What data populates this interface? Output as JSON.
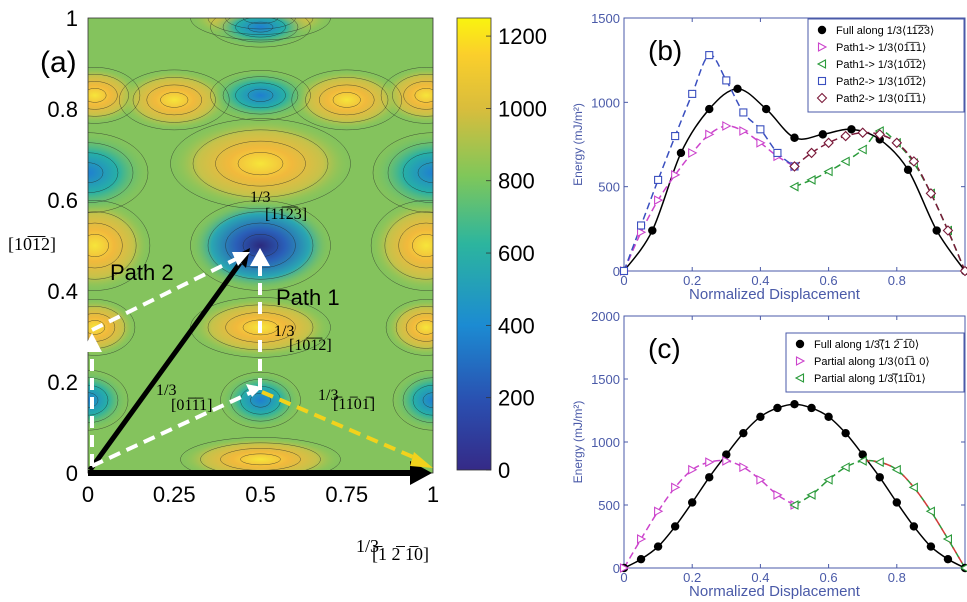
{
  "panel_a": {
    "label": "(a)",
    "xticks": [
      "0",
      "0.25",
      "0.5",
      "0.75",
      "1"
    ],
    "yticks": [
      "0",
      "0.2",
      "0.4",
      "0.6",
      "0.8",
      "1"
    ],
    "colorbar_ticks": [
      "0",
      "200",
      "400",
      "600",
      "800",
      "1000",
      "1200"
    ],
    "colorbar_range": [
      0,
      1250
    ],
    "colors": {
      "low": "#3b2b8f",
      "mid": "#2fb59b",
      "high": "#f7e03a"
    },
    "y_axis_label": "[10̅1̅2]",
    "x_axis_frac": "1/3",
    "x_axis_label": "[̅1 2̅ 1̅0]",
    "annotations": {
      "path1": "Path 1",
      "path2": "Path 2",
      "frac": "1/3",
      "a1": "[11̅2̅3]",
      "a2": "[10̅1̅2]",
      "a3": "[01̅1̅1]",
      "a4": "[̅11̅01̅]"
    }
  },
  "chart_data": [
    {
      "panel": "(b)",
      "type": "line",
      "xlabel": "Normalized Displacement",
      "ylabel": "Energy (mJ/m²)",
      "xlim": [
        0,
        1
      ],
      "ylim": [
        0,
        1500
      ],
      "xticks": [
        "0",
        "0.2",
        "0.4",
        "0.6",
        "0.8"
      ],
      "yticks": [
        "0",
        "500",
        "1000",
        "1500"
      ],
      "legend_position": "top-right",
      "series": [
        {
          "name": "Full along 1/3⟨11̅2̅3⟩",
          "color": "#000000",
          "marker": "filled-circle",
          "line": "solid",
          "x": [
            0,
            0.083,
            0.167,
            0.25,
            0.333,
            0.417,
            0.5,
            0.583,
            0.667,
            0.75,
            0.833,
            0.917,
            1.0
          ],
          "y": [
            0,
            240,
            700,
            960,
            1080,
            960,
            790,
            810,
            840,
            780,
            600,
            240,
            0
          ]
        },
        {
          "name": "Path1-> 1/3⟨01̅1̅1⟩",
          "color": "#cc44cc",
          "marker": "open-triangle-right",
          "line": "dashed",
          "x": [
            0,
            0.05,
            0.1,
            0.15,
            0.2,
            0.25,
            0.3,
            0.35,
            0.4,
            0.45,
            0.5
          ],
          "y": [
            0,
            230,
            420,
            570,
            700,
            810,
            860,
            830,
            760,
            680,
            620
          ]
        },
        {
          "name": "Path1-> 1/3⟨10̅1̅2⟩",
          "color": "#2a9a3a",
          "marker": "open-triangle-left",
          "line": "dashed",
          "x": [
            0.5,
            0.55,
            0.6,
            0.65,
            0.7,
            0.75,
            0.8,
            0.85,
            0.9,
            0.95,
            1.0
          ],
          "y": [
            500,
            540,
            590,
            650,
            720,
            830,
            760,
            640,
            460,
            240,
            0
          ]
        },
        {
          "name": "Path2-> 1/3⟨10̅1̅2⟩",
          "color": "#3a4fbf",
          "marker": "open-square",
          "line": "dashed",
          "x": [
            0,
            0.05,
            0.1,
            0.15,
            0.2,
            0.25,
            0.3,
            0.35,
            0.4,
            0.45,
            0.5
          ],
          "y": [
            0,
            270,
            540,
            800,
            1050,
            1280,
            1130,
            940,
            840,
            700,
            620
          ]
        },
        {
          "name": "Path2-> 1/3⟨01̅1̅1⟩",
          "color": "#7a1a3a",
          "marker": "open-diamond",
          "line": "dashed",
          "x": [
            0.5,
            0.55,
            0.6,
            0.65,
            0.7,
            0.75,
            0.8,
            0.85,
            0.9,
            0.95,
            1.0
          ],
          "y": [
            620,
            700,
            760,
            800,
            820,
            810,
            760,
            650,
            460,
            240,
            0
          ]
        }
      ]
    },
    {
      "panel": "(c)",
      "type": "line",
      "xlabel": "Normalized Displacement",
      "ylabel": "Energy (mJ/m²)",
      "xlim": [
        0,
        1
      ],
      "ylim": [
        0,
        2000
      ],
      "xticks": [
        "0",
        "0.2",
        "0.4",
        "0.6",
        "0.8"
      ],
      "yticks": [
        "0",
        "500",
        "1000",
        "1500",
        "2000"
      ],
      "legend_position": "top-right",
      "series": [
        {
          "name": "Full along 1/3⟨̅1 2̅ 1̅0⟩",
          "color": "#000000",
          "marker": "filled-circle",
          "line": "solid",
          "x": [
            0,
            0.05,
            0.1,
            0.15,
            0.2,
            0.25,
            0.3,
            0.35,
            0.4,
            0.45,
            0.5,
            0.55,
            0.6,
            0.65,
            0.7,
            0.75,
            0.8,
            0.85,
            0.9,
            0.95,
            1.0
          ],
          "y": [
            0,
            70,
            170,
            330,
            520,
            720,
            900,
            1070,
            1200,
            1270,
            1300,
            1270,
            1200,
            1070,
            900,
            720,
            520,
            330,
            170,
            70,
            0
          ]
        },
        {
          "name": "Partial along 1/3⟨01̅1 0⟩",
          "color": "#cc44cc",
          "marker": "open-triangle-right",
          "line": "dashed",
          "x": [
            0,
            0.05,
            0.1,
            0.15,
            0.2,
            0.25,
            0.3,
            0.35,
            0.4,
            0.45,
            0.5
          ],
          "y": [
            0,
            230,
            450,
            640,
            780,
            840,
            850,
            800,
            700,
            580,
            500
          ]
        },
        {
          "name": "Partial along 1/3⟨̅11̅01⟩",
          "color": "#2a9a3a",
          "marker": "open-triangle-left",
          "line": "dashed",
          "x": [
            0.5,
            0.55,
            0.6,
            0.65,
            0.7,
            0.75,
            0.8,
            0.85,
            0.9,
            0.95,
            1.0
          ],
          "y": [
            500,
            580,
            700,
            800,
            850,
            840,
            780,
            640,
            450,
            230,
            0
          ]
        },
        {
          "name": "",
          "color": "#d43a3a",
          "marker": "none",
          "line": "dashed",
          "x": [
            0.7,
            0.75,
            0.8,
            0.85,
            0.9,
            0.95,
            1.0
          ],
          "y": [
            850,
            840,
            780,
            640,
            450,
            230,
            0
          ]
        }
      ]
    }
  ],
  "panel_labels": {
    "b": "(b)",
    "c": "(c)"
  }
}
